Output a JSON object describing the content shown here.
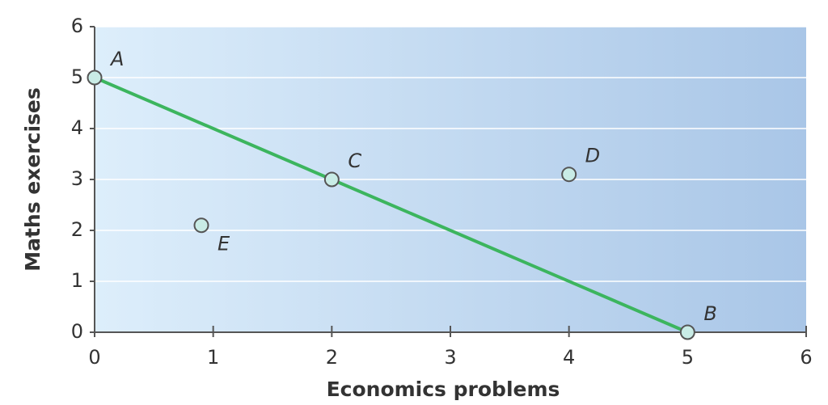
{
  "chart_data": {
    "type": "scatter",
    "x_label": "Economics problems",
    "y_label": "Maths exercises",
    "xlim": [
      0,
      6
    ],
    "ylim": [
      0,
      6
    ],
    "xticks": [
      0,
      1,
      2,
      3,
      4,
      5,
      6
    ],
    "yticks": [
      0,
      1,
      2,
      3,
      4,
      5,
      6
    ],
    "grid": true,
    "line": {
      "x": [
        0,
        5
      ],
      "y": [
        5,
        0
      ],
      "color": "#3cb55e"
    },
    "points": {
      "x": [
        0,
        5,
        2,
        4,
        0.9
      ],
      "y": [
        5,
        0,
        3,
        3.1,
        2.1
      ],
      "labels": [
        "A",
        "B",
        "C",
        "D",
        "E"
      ],
      "color": "#c9ece6"
    }
  }
}
